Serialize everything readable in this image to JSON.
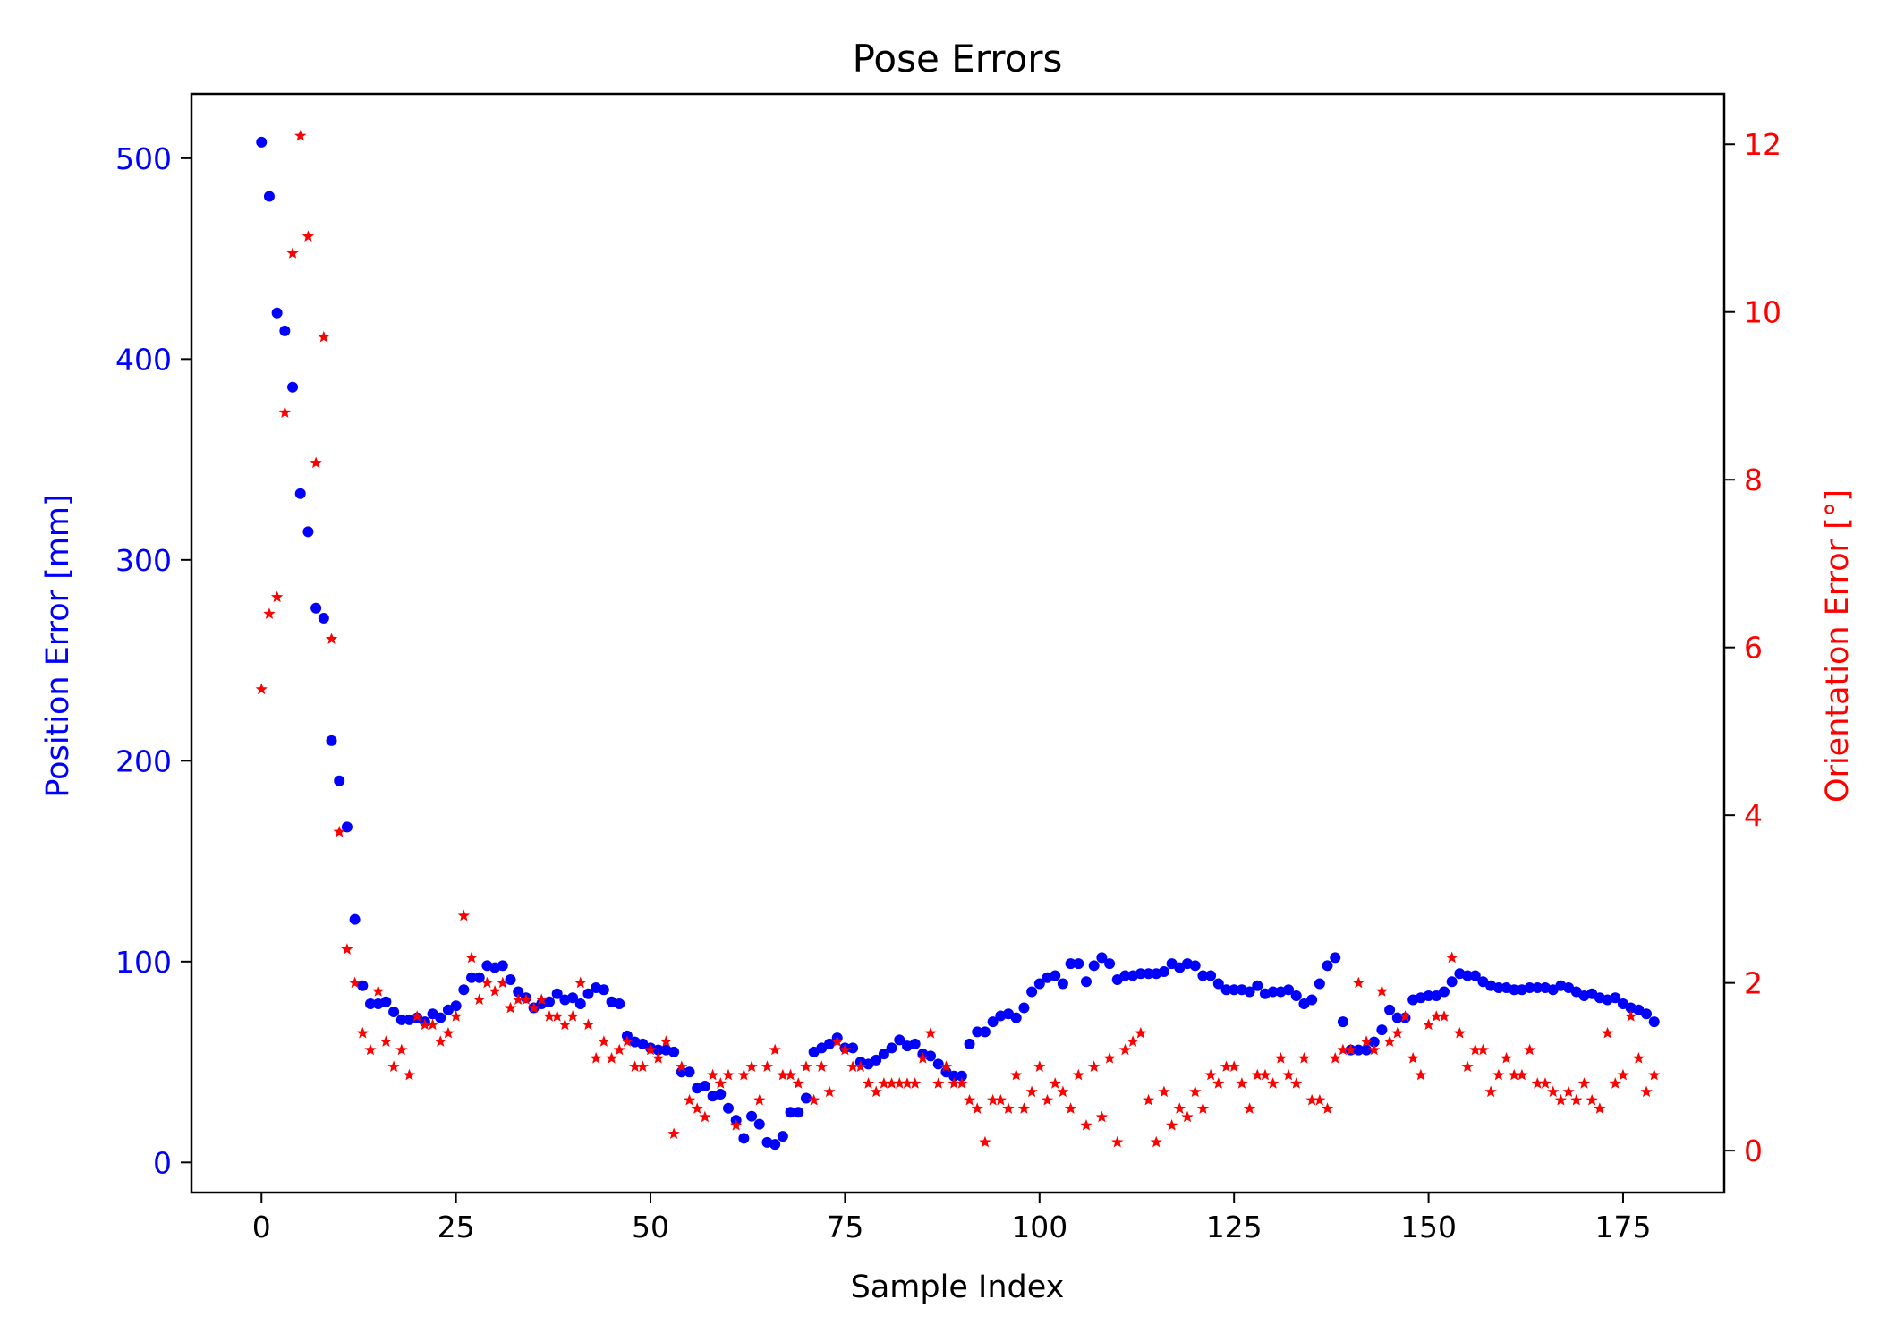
{
  "chart_data": {
    "type": "scatter",
    "title": "Pose Errors",
    "xlabel": "Sample Index",
    "ylabel": "Position Error [mm]",
    "ylabel_right": "Orientation Error [°]",
    "xlim": [
      -9,
      188
    ],
    "ylim": [
      -15,
      532
    ],
    "ylim_right": [
      -0.5,
      12.6
    ],
    "x_ticks": [
      0,
      25,
      50,
      75,
      100,
      125,
      150,
      175
    ],
    "y_ticks": [
      0,
      100,
      200,
      300,
      400,
      500
    ],
    "y_ticks_right": [
      0,
      2,
      4,
      6,
      8,
      10,
      12
    ],
    "grid": false,
    "colors": {
      "position": "#0000ff",
      "orientation": "#ff0000",
      "axes": "#000000"
    },
    "series": [
      {
        "axis": "left",
        "marker": "dot",
        "values": [
          508,
          481,
          423,
          414,
          386,
          333,
          314,
          276,
          271,
          210,
          190,
          167,
          121,
          88,
          79,
          79,
          80,
          75,
          71,
          71,
          72,
          70,
          74,
          72,
          76,
          78,
          86,
          92,
          92,
          98,
          97,
          98,
          91,
          85,
          82,
          77,
          79,
          80,
          84,
          81,
          82,
          79,
          84,
          87,
          86,
          80,
          79,
          63,
          60,
          59,
          57,
          56,
          56,
          55,
          45,
          45,
          37,
          38,
          33,
          34,
          27,
          21,
          12,
          23,
          19,
          10,
          9,
          13,
          25,
          25,
          32,
          55,
          57,
          59,
          62,
          57,
          57,
          50,
          49,
          51,
          54,
          57,
          61,
          58,
          59,
          54,
          53,
          49,
          45,
          43,
          43,
          59,
          65,
          65,
          70,
          73,
          74,
          72,
          77,
          85,
          89,
          92,
          93,
          89,
          99,
          99,
          90,
          98,
          102,
          99,
          91,
          93,
          93,
          94,
          94,
          94,
          95,
          99,
          97,
          99,
          98,
          93,
          93,
          89,
          86,
          86,
          86,
          85,
          88,
          84,
          85,
          85,
          86,
          83,
          79,
          81,
          89,
          98,
          102,
          70,
          56,
          56,
          56,
          60,
          66,
          76,
          72,
          72,
          81,
          82,
          83,
          83,
          85,
          90,
          94,
          93,
          93,
          90,
          88,
          87,
          87,
          86,
          86,
          87,
          87,
          87,
          86,
          88,
          87,
          85,
          83,
          84,
          82,
          81,
          82,
          79,
          77,
          76,
          74,
          70
        ]
      },
      {
        "axis": "right",
        "marker": "star",
        "values": [
          5.5,
          6.4,
          6.6,
          8.8,
          10.7,
          12.1,
          10.9,
          8.2,
          9.7,
          6.1,
          3.8,
          2.4,
          2.0,
          1.4,
          1.2,
          1.9,
          1.3,
          1.0,
          1.2,
          0.9,
          1.6,
          1.5,
          1.5,
          1.3,
          1.4,
          1.6,
          2.8,
          2.3,
          1.8,
          2.0,
          1.9,
          2.0,
          1.7,
          1.8,
          1.8,
          1.7,
          1.8,
          1.6,
          1.6,
          1.5,
          1.6,
          2.0,
          1.5,
          1.1,
          1.3,
          1.1,
          1.2,
          1.3,
          1.0,
          1.0,
          1.2,
          1.1,
          1.3,
          0.2,
          1.0,
          0.6,
          0.5,
          0.4,
          0.9,
          0.8,
          0.9,
          0.3,
          0.9,
          1.0,
          0.6,
          1.0,
          1.2,
          0.9,
          0.9,
          0.8,
          1.0,
          0.6,
          1.0,
          0.7,
          1.3,
          1.2,
          1.0,
          1.0,
          0.8,
          0.7,
          0.8,
          0.8,
          0.8,
          0.8,
          0.8,
          1.1,
          1.4,
          0.8,
          1.0,
          0.8,
          0.8,
          0.6,
          0.5,
          0.1,
          0.6,
          0.6,
          0.5,
          0.9,
          0.5,
          0.7,
          1.0,
          0.6,
          0.8,
          0.7,
          0.5,
          0.9,
          0.3,
          1.0,
          0.4,
          1.1,
          0.1,
          1.2,
          1.3,
          1.4,
          0.6,
          0.1,
          0.7,
          0.3,
          0.5,
          0.4,
          0.7,
          0.5,
          0.9,
          0.8,
          1.0,
          1.0,
          0.8,
          0.5,
          0.9,
          0.9,
          0.8,
          1.1,
          0.9,
          0.8,
          1.1,
          0.6,
          0.6,
          0.5,
          1.1,
          1.2,
          1.2,
          2.0,
          1.3,
          1.2,
          1.9,
          1.3,
          1.4,
          1.6,
          1.1,
          0.9,
          1.5,
          1.6,
          1.6,
          2.3,
          1.4,
          1.0,
          1.2,
          1.2,
          0.7,
          0.9,
          1.1,
          0.9,
          0.9,
          1.2,
          0.8,
          0.8,
          0.7,
          0.6,
          0.7,
          0.6,
          0.8,
          0.6,
          0.5,
          1.4,
          0.8,
          0.9,
          1.6,
          1.1,
          0.7,
          0.9
        ]
      }
    ]
  }
}
